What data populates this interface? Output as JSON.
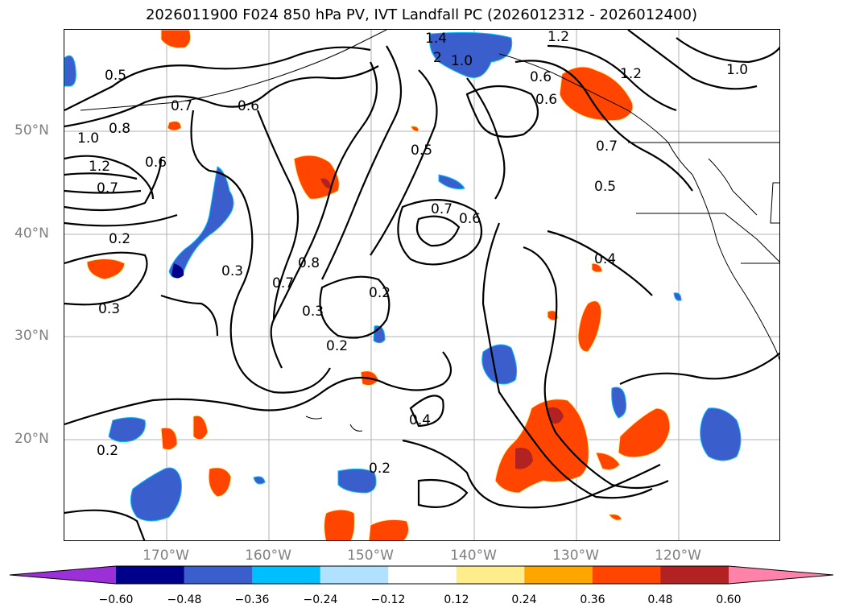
{
  "title": "2026011900 F024 850 hPa PV, IVT Landfall PC (2026012312 - 2026012400)",
  "lat_labels": [
    "50°N",
    "40°N",
    "30°N",
    "20°N"
  ],
  "lon_labels": [
    "170°W",
    "160°W",
    "150°W",
    "140°W",
    "130°W",
    "120°W"
  ],
  "contour_labels": [
    "0.5",
    "0.7",
    "1.0",
    "0.8",
    "1.2",
    "0.6",
    "0.7",
    "0.2",
    "0.3",
    "0.3",
    "0.6",
    "0.5",
    "0.7",
    "0.6",
    "0.8",
    "0.7",
    "0.3",
    "0.2",
    "0.2",
    "0.4",
    "0.2",
    "0.4",
    "0.7",
    "0.5",
    "0.6",
    "0.6",
    "1.4",
    "2",
    "1.0",
    "1.2",
    "1.2",
    "1.0",
    "0.2"
  ],
  "colorbar": {
    "ticks": [
      "−0.60",
      "−0.48",
      "−0.36",
      "−0.24",
      "−0.12",
      "0.12",
      "0.24",
      "0.36",
      "0.48",
      "0.60"
    ],
    "colors": [
      "#9b30d9",
      "#00008b",
      "#3a5fcd",
      "#00bfff",
      "#b0e2ff",
      "#ffffff",
      "#ffec8b",
      "#ffa500",
      "#ff4500",
      "#b22222",
      "#ff82ab"
    ]
  }
}
